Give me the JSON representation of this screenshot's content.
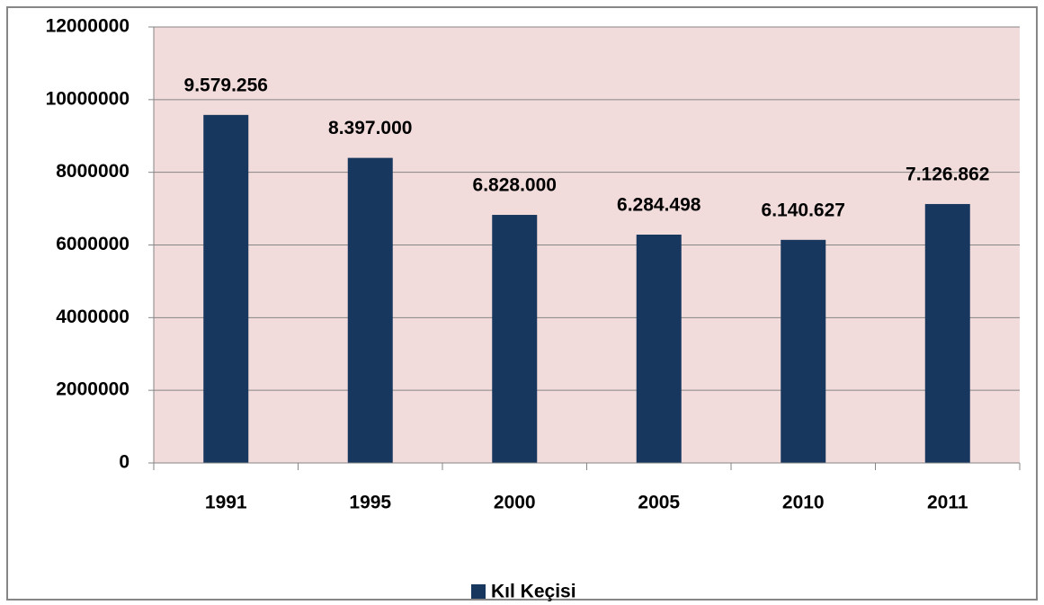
{
  "chart_data": {
    "type": "bar",
    "categories": [
      "1991",
      "1995",
      "2000",
      "2005",
      "2010",
      "2011"
    ],
    "series": [
      {
        "name": "Kıl Keçisi",
        "color": "#17375e",
        "values": [
          9579256,
          8397000,
          6828000,
          6284498,
          6140627,
          7126862
        ],
        "value_labels": [
          "9.579.256",
          "8.397.000",
          "6.828.000",
          "6.284.498",
          "6.140.627",
          "7.126.862"
        ]
      }
    ],
    "ylim": [
      0,
      12000000
    ],
    "yticks": [
      0,
      2000000,
      4000000,
      6000000,
      8000000,
      10000000,
      12000000
    ],
    "grid": true,
    "legend": "bottom"
  }
}
